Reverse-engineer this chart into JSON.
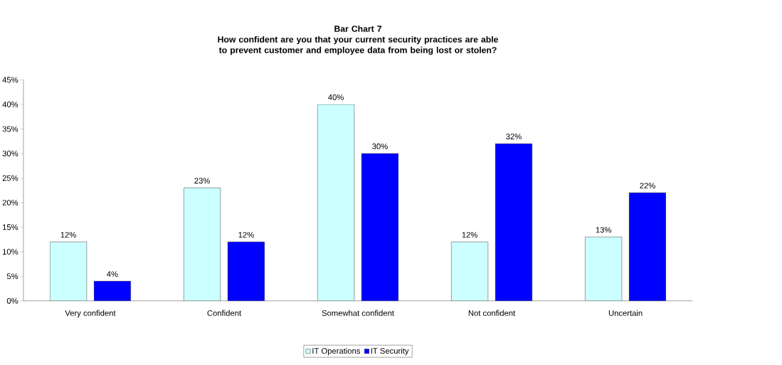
{
  "chart_data": {
    "type": "bar",
    "title": "Bar Chart 7",
    "subtitle": "How confident are you that your current security practices are able to prevent customer and employee data from being lost or stolen?",
    "categories": [
      "Very confident",
      "Confident",
      "Somewhat confident",
      "Not confident",
      "Uncertain"
    ],
    "series": [
      {
        "name": "IT Operations",
        "color": "#ccffff",
        "values": [
          12,
          23,
          40,
          12,
          13
        ],
        "value_labels": [
          "12%",
          "23%",
          "40%",
          "12%",
          "13%"
        ]
      },
      {
        "name": "IT Security",
        "color": "#0000ff",
        "values": [
          4,
          12,
          30,
          32,
          22
        ],
        "value_labels": [
          "4%",
          "12%",
          "30%",
          "32%",
          "22%"
        ]
      }
    ],
    "ylim": [
      0,
      45
    ],
    "yticks": [
      {
        "value": 0,
        "label": "0%"
      },
      {
        "value": 5,
        "label": "5%"
      },
      {
        "value": 10,
        "label": "10%"
      },
      {
        "value": 15,
        "label": "15%"
      },
      {
        "value": 20,
        "label": "20%"
      },
      {
        "value": 25,
        "label": "25%"
      },
      {
        "value": 30,
        "label": "30%"
      },
      {
        "value": 35,
        "label": "35%"
      },
      {
        "value": 40,
        "label": "40%"
      },
      {
        "value": 45,
        "label": "45%"
      }
    ],
    "grid": false,
    "legend": "bottom"
  }
}
